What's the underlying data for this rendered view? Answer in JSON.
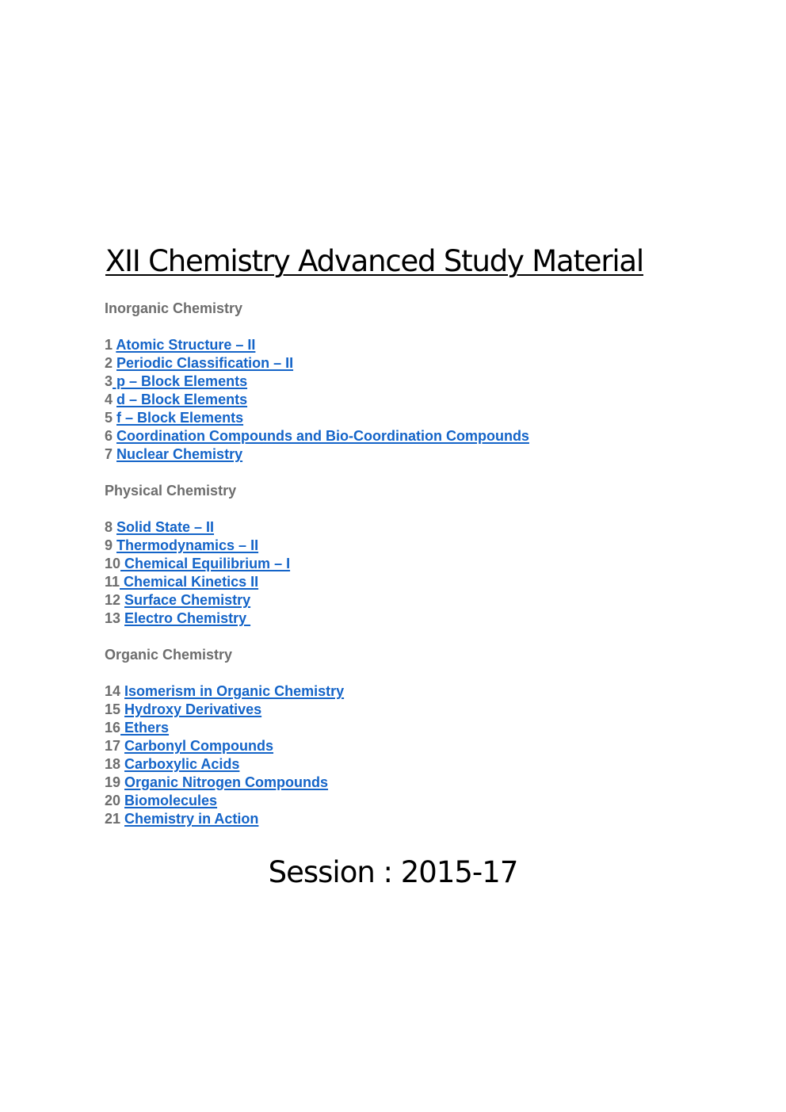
{
  "title": "XII Chemistry Advanced Study Material",
  "sections": [
    {
      "heading": "Inorganic Chemistry",
      "items": [
        {
          "num": "1 ",
          "label": "Atomic Structure – II"
        },
        {
          "num": "2 ",
          "label": "Periodic Classification – II"
        },
        {
          "num": "3",
          "label": " p – Block Elements"
        },
        {
          "num": "4 ",
          "label": "d – Block Elements"
        },
        {
          "num": "5 ",
          "label": "f – Block Elements"
        },
        {
          "num": "6 ",
          "label": "Coordination Compounds and Bio-Coordination Compounds"
        },
        {
          "num": "7 ",
          "label": "Nuclear Chemistry"
        }
      ]
    },
    {
      "heading": "Physical Chemistry",
      "items": [
        {
          "num": "8 ",
          "label": "Solid State – II"
        },
        {
          "num": "9 ",
          "label": "Thermodynamics – II"
        },
        {
          "num": "10",
          "label": " Chemical Equilibrium – I"
        },
        {
          "num": "11",
          "label": " Chemical Kinetics II"
        },
        {
          "num": "12 ",
          "label": "Surface Chemistry"
        },
        {
          "num": "13 ",
          "label": "Electro Chemistry "
        }
      ]
    },
    {
      "heading": "Organic Chemistry",
      "items": [
        {
          "num": "14 ",
          "label": "Isomerism in Organic Chemistry"
        },
        {
          "num": "15 ",
          "label": "Hydroxy Derivatives"
        },
        {
          "num": "16",
          "label": " Ethers"
        },
        {
          "num": "17 ",
          "label": "Carbonyl Compounds"
        },
        {
          "num": "18 ",
          "label": "Carboxylic Acids"
        },
        {
          "num": "19 ",
          "label": "Organic Nitrogen Compounds"
        },
        {
          "num": "20 ",
          "label": "Biomolecules"
        },
        {
          "num": "21 ",
          "label": "Chemistry in Action"
        }
      ]
    }
  ],
  "session": "Session : 2015-17",
  "colors": {
    "link": "#1464c8",
    "muted_text": "#6d6d6d",
    "title_text": "#000000"
  }
}
